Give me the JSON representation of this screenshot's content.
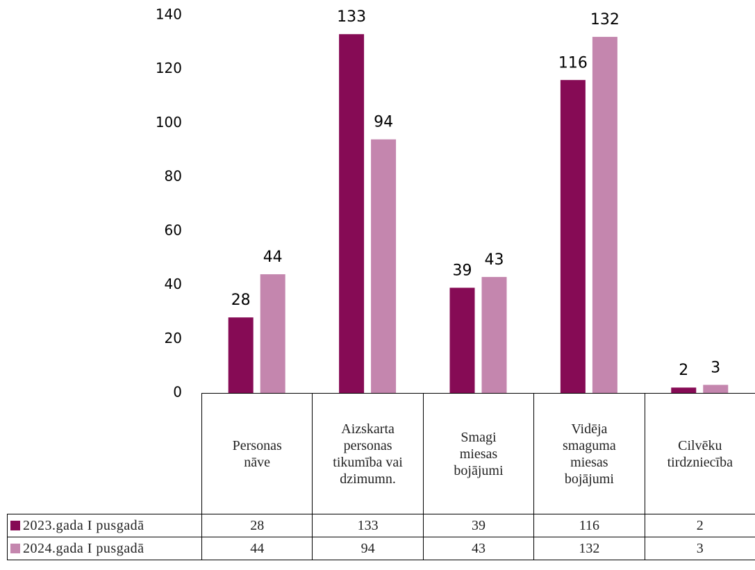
{
  "chart_data": {
    "type": "bar",
    "categories": [
      "Personas nāve",
      "Aizskarta personas tikumība vai dzimumn.",
      "Smagi miesas bojājumi",
      "Vidēja smaguma miesas bojājumi",
      "Cilvēku tirdzniecība"
    ],
    "series": [
      {
        "name": "2023.gada I pusgadā",
        "color": "#860b55",
        "values": [
          28,
          133,
          39,
          116,
          2
        ]
      },
      {
        "name": "2024.gada I pusgadā",
        "color": "#c486ae",
        "values": [
          44,
          94,
          43,
          132,
          3
        ]
      }
    ],
    "ylim": [
      0,
      140
    ],
    "yticks": [
      0,
      20,
      40,
      60,
      80,
      100,
      120,
      140
    ],
    "grid": false,
    "data_table": true
  }
}
